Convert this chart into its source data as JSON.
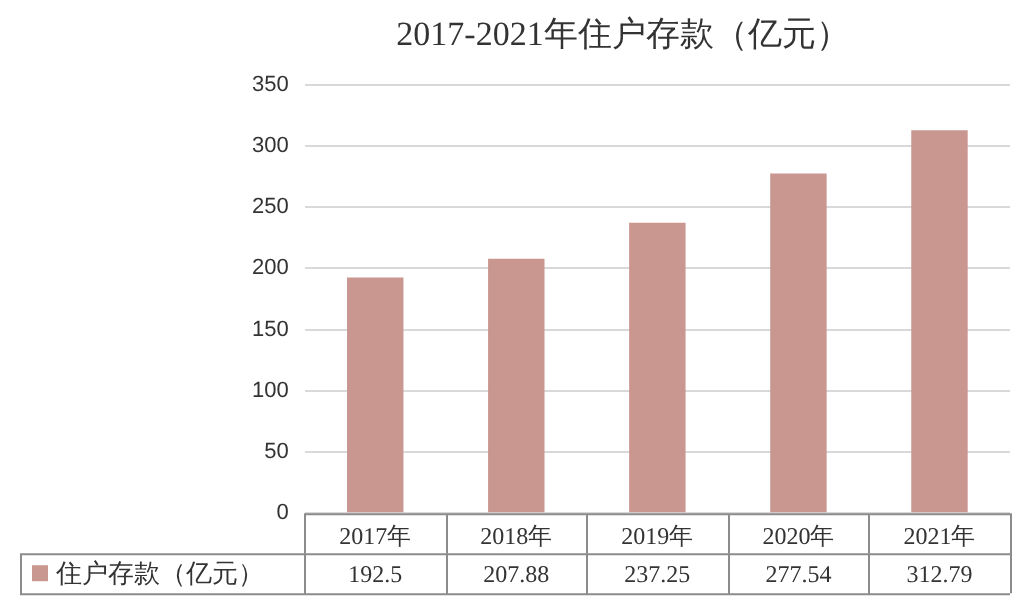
{
  "chart_data": {
    "type": "bar",
    "title": "2017-2021年住户存款（亿元）",
    "categories": [
      "2017年",
      "2018年",
      "2019年",
      "2020年",
      "2021年"
    ],
    "series": [
      {
        "name": "住户存款（亿元）",
        "color": "#c99690",
        "values": [
          192.5,
          207.88,
          237.25,
          277.54,
          312.79
        ]
      }
    ],
    "ylim": [
      0,
      350
    ],
    "yticks": [
      0,
      50,
      100,
      150,
      200,
      250,
      300,
      350
    ],
    "grid": "y",
    "legend": "bottom",
    "data_labels": true
  }
}
